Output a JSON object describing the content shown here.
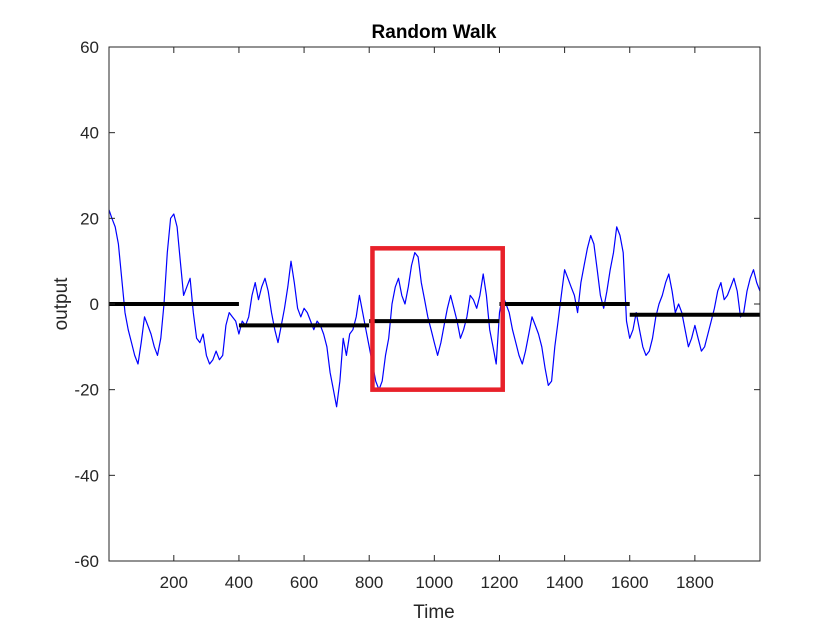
{
  "chart_data": {
    "type": "line",
    "title": "Random Walk",
    "xlabel": "Time",
    "ylabel": "output",
    "xlim": [
      1,
      2000
    ],
    "ylim": [
      -60,
      60
    ],
    "xticks": [
      200,
      400,
      600,
      800,
      1000,
      1200,
      1400,
      1600,
      1800
    ],
    "yticks": [
      -60,
      -40,
      -20,
      0,
      20,
      40,
      60
    ],
    "grid": false,
    "legend": "none",
    "colors": {
      "series": "#0000ff",
      "segment_means": "#000000",
      "highlight": "#e8212a",
      "axes": "#262626"
    },
    "series": [
      {
        "x": [
          1,
          10,
          20,
          30,
          40,
          50,
          60,
          70,
          80,
          90,
          100,
          110,
          120,
          130,
          140,
          150,
          160,
          170,
          180,
          190,
          200,
          210,
          220,
          230,
          240,
          250,
          260,
          270,
          280,
          290,
          300,
          310,
          320,
          330,
          340,
          350,
          360,
          370,
          380,
          390,
          400,
          410,
          420,
          430,
          440,
          450,
          460,
          470,
          480,
          490,
          500,
          510,
          520,
          530,
          540,
          550,
          560,
          570,
          580,
          590,
          600,
          610,
          620,
          630,
          640,
          650,
          660,
          670,
          680,
          690,
          700,
          710,
          720,
          730,
          740,
          750,
          760,
          770,
          780,
          790,
          800,
          810,
          820,
          830,
          840,
          850,
          860,
          870,
          880,
          890,
          900,
          910,
          920,
          930,
          940,
          950,
          960,
          970,
          980,
          990,
          1000,
          1010,
          1020,
          1030,
          1040,
          1050,
          1060,
          1070,
          1080,
          1090,
          1100,
          1110,
          1120,
          1130,
          1140,
          1150,
          1160,
          1170,
          1180,
          1190,
          1200,
          1210,
          1220,
          1230,
          1240,
          1250,
          1260,
          1270,
          1280,
          1290,
          1300,
          1310,
          1320,
          1330,
          1340,
          1350,
          1360,
          1370,
          1380,
          1390,
          1400,
          1410,
          1420,
          1430,
          1440,
          1450,
          1460,
          1470,
          1480,
          1490,
          1500,
          1510,
          1520,
          1530,
          1540,
          1550,
          1560,
          1570,
          1580,
          1590,
          1600,
          1610,
          1620,
          1630,
          1640,
          1650,
          1660,
          1670,
          1680,
          1690,
          1700,
          1710,
          1720,
          1730,
          1740,
          1750,
          1760,
          1770,
          1780,
          1790,
          1800,
          1810,
          1820,
          1830,
          1840,
          1850,
          1860,
          1870,
          1880,
          1890,
          1900,
          1910,
          1920,
          1930,
          1940,
          1950,
          1960,
          1970,
          1980,
          1990,
          2000
        ],
        "values": [
          22,
          20,
          18,
          14,
          6,
          -2,
          -6,
          -9,
          -12,
          -14,
          -9,
          -3,
          -5,
          -7,
          -10,
          -12,
          -8,
          0,
          12,
          20,
          21,
          18,
          10,
          2,
          4,
          6,
          -2,
          -8,
          -9,
          -7,
          -12,
          -14,
          -13,
          -11,
          -13,
          -12,
          -5,
          -2,
          -3,
          -4,
          -7,
          -4,
          -5,
          -3,
          2,
          5,
          1,
          4,
          6,
          3,
          -2,
          -6,
          -9,
          -5,
          -1,
          4,
          10,
          5,
          -1,
          -3,
          -1,
          -2,
          -4,
          -6,
          -4,
          -5,
          -7,
          -10,
          -16,
          -20,
          -24,
          -18,
          -8,
          -12,
          -7,
          -6,
          -3,
          2,
          -2,
          -6,
          -10,
          -14,
          -18,
          -20,
          -18,
          -12,
          -8,
          0,
          4,
          6,
          2,
          0,
          4,
          9,
          12,
          11,
          5,
          1,
          -3,
          -6,
          -9,
          -12,
          -9,
          -5,
          -1,
          2,
          -1,
          -4,
          -8,
          -6,
          -3,
          2,
          1,
          -1,
          2,
          7,
          2,
          -6,
          -10,
          -14,
          -2,
          2,
          0,
          -2,
          -6,
          -9,
          -12,
          -14,
          -11,
          -7,
          -3,
          -5,
          -7,
          -10,
          -15,
          -19,
          -18,
          -10,
          -4,
          2,
          8,
          6,
          4,
          2,
          -2,
          5,
          9,
          13,
          16,
          14,
          8,
          2,
          -1,
          3,
          8,
          12,
          18,
          16,
          12,
          -4,
          -8,
          -6,
          -2,
          -6,
          -10,
          -12,
          -11,
          -8,
          -3,
          0,
          2,
          5,
          7,
          3,
          -2,
          0,
          -2,
          -6,
          -10,
          -8,
          -5,
          -8,
          -11,
          -10,
          -7,
          -4,
          -1,
          3,
          5,
          1,
          2,
          4,
          6,
          3,
          -3,
          -2,
          3,
          6,
          8,
          5,
          3
        ]
      }
    ],
    "segment_means": [
      {
        "x_start": 1,
        "x_end": 400,
        "value": 0
      },
      {
        "x_start": 400,
        "x_end": 800,
        "value": -5
      },
      {
        "x_start": 800,
        "x_end": 1200,
        "value": -4
      },
      {
        "x_start": 1200,
        "x_end": 1600,
        "value": 0
      },
      {
        "x_start": 1600,
        "x_end": 2000,
        "value": -2.5
      }
    ],
    "highlight": {
      "x_start": 810,
      "x_end": 1210,
      "y_min": -20,
      "y_max": 13
    }
  }
}
